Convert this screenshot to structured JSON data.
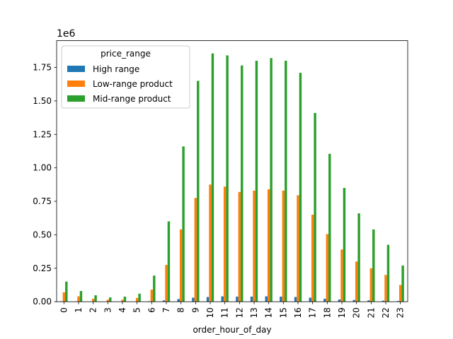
{
  "chart_data": {
    "type": "bar",
    "title": "",
    "xlabel": "order_hour_of_day",
    "ylabel": "",
    "y_offset_label": "1e6",
    "categories": [
      "0",
      "1",
      "2",
      "3",
      "4",
      "5",
      "6",
      "7",
      "8",
      "9",
      "10",
      "11",
      "12",
      "13",
      "14",
      "15",
      "16",
      "17",
      "18",
      "19",
      "20",
      "21",
      "22",
      "23"
    ],
    "ylim": [
      0,
      1.95
    ],
    "yticks": [
      0,
      0.25,
      0.5,
      0.75,
      1.0,
      1.25,
      1.5,
      1.75
    ],
    "ytick_labels": [
      "0.00",
      "0.25",
      "0.50",
      "0.75",
      "1.00",
      "1.25",
      "1.50",
      "1.75"
    ],
    "unit_scale": 1000000,
    "legend": {
      "title": "price_range",
      "position": "top-left"
    },
    "grid": false,
    "series": [
      {
        "name": "High range",
        "color": "#1f77b4",
        "values": [
          0.003,
          0.002,
          0.001,
          0.001,
          0.001,
          0.001,
          0.003,
          0.01,
          0.02,
          0.03,
          0.035,
          0.04,
          0.038,
          0.038,
          0.04,
          0.038,
          0.035,
          0.03,
          0.022,
          0.017,
          0.013,
          0.01,
          0.008,
          0.005
        ]
      },
      {
        "name": "Low-range product",
        "color": "#ff7f0e",
        "values": [
          0.07,
          0.04,
          0.022,
          0.015,
          0.015,
          0.028,
          0.09,
          0.275,
          0.54,
          0.775,
          0.875,
          0.86,
          0.82,
          0.83,
          0.84,
          0.83,
          0.795,
          0.65,
          0.505,
          0.39,
          0.3,
          0.25,
          0.2,
          0.125
        ]
      },
      {
        "name": "Mid-range product",
        "color": "#2ca02c",
        "values": [
          0.15,
          0.08,
          0.048,
          0.032,
          0.038,
          0.06,
          0.195,
          0.6,
          1.16,
          1.65,
          1.855,
          1.84,
          1.765,
          1.8,
          1.82,
          1.8,
          1.71,
          1.41,
          1.105,
          0.85,
          0.66,
          0.54,
          0.425,
          0.27
        ]
      }
    ]
  }
}
